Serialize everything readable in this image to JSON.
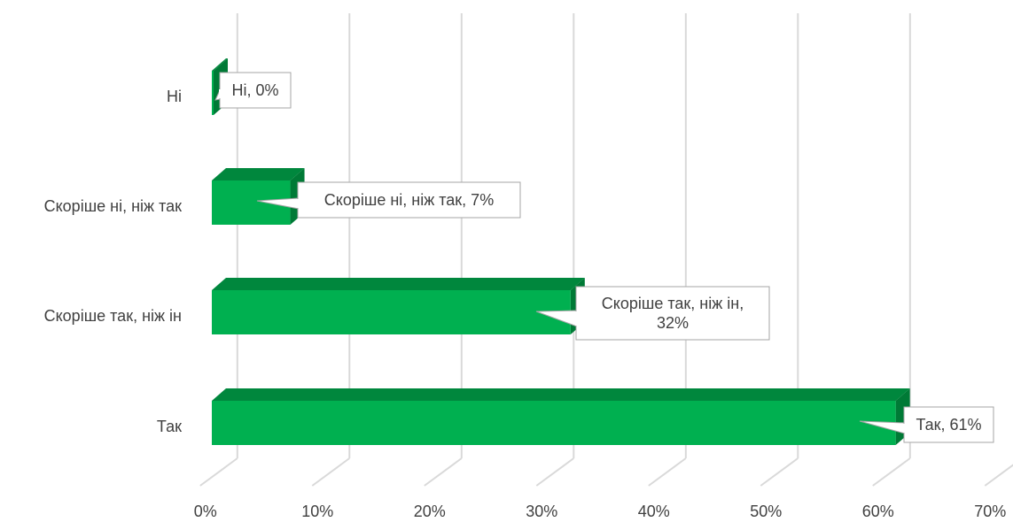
{
  "chart_data": {
    "type": "bar",
    "orientation": "horizontal",
    "style": "3d",
    "categories": [
      "Ні",
      "Скоріше ні, ніж так",
      "Скоріше так, ніж ін",
      "Так"
    ],
    "values": [
      0,
      7,
      32,
      61
    ],
    "data_labels": [
      [
        "Ні, 0%"
      ],
      [
        "Скоріше ні, ніж так, 7%"
      ],
      [
        "Скоріше так, ніж ін,",
        "32%"
      ],
      [
        "Так, 61%"
      ]
    ],
    "x_ticks": [
      "0%",
      "10%",
      "20%",
      "30%",
      "40%",
      "50%",
      "60%",
      "70%"
    ],
    "xlim": [
      0,
      70
    ],
    "grid": true,
    "legend": "none",
    "colors": {
      "bar_front": "#00b050",
      "bar_top": "#00873d",
      "bar_side": "#007a36",
      "grid": "#d9d9d9",
      "callout_border": "#a6a6a6",
      "text": "#404040"
    }
  }
}
